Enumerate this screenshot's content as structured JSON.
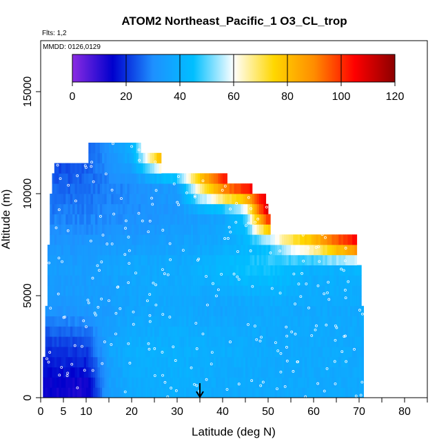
{
  "chart_data": {
    "type": "heatmap",
    "title": "ATOM2 Northeast_Pacific_1 O3_CL_trop",
    "annotations": {
      "flights": "Flts: 1,2",
      "dates": "MMDD: 0126,0129"
    },
    "xlabel": "Latitude (deg N)",
    "ylabel": "Altitude (m)",
    "xlim": [
      0,
      85
    ],
    "ylim": [
      0,
      17500
    ],
    "x_ticks": [
      0,
      5,
      10,
      20,
      30,
      40,
      50,
      60,
      70,
      80
    ],
    "y_ticks": [
      0,
      5000,
      10000,
      15000
    ],
    "colorbar": {
      "range": [
        0,
        120
      ],
      "ticks": [
        0,
        20,
        40,
        60,
        80,
        100,
        120
      ],
      "colors": [
        "#8b2be2",
        "#0000cd",
        "#1e90ff",
        "#00bfff",
        "#ffffff",
        "#ffd700",
        "#ff8c00",
        "#ff0000",
        "#8b0000"
      ]
    },
    "marker_latitude": 35,
    "altitude_bins_m": [
      500,
      1000,
      1500,
      2000,
      2500,
      3000,
      3500,
      4000,
      4500,
      5000,
      5500,
      6000,
      6500,
      7000,
      7500,
      8000,
      8500,
      9000,
      9500,
      10000,
      10500,
      11000,
      11500,
      12000,
      12500
    ],
    "lat_extent_by_altitude": [
      [
        0.5,
        71
      ],
      [
        0.5,
        71
      ],
      [
        0.5,
        71
      ],
      [
        0.5,
        71
      ],
      [
        1,
        71
      ],
      [
        1,
        71
      ],
      [
        1,
        71
      ],
      [
        1,
        71
      ],
      [
        1,
        71
      ],
      [
        1.5,
        70.5
      ],
      [
        1.5,
        70.5
      ],
      [
        1.5,
        70.5
      ],
      [
        1.5,
        70.5
      ],
      [
        1.5,
        69.5
      ],
      [
        1.5,
        69.5
      ],
      [
        2,
        69.5
      ],
      [
        2,
        50.5
      ],
      [
        2,
        50.5
      ],
      [
        2,
        50
      ],
      [
        2,
        49.5
      ],
      [
        2.5,
        46.5
      ],
      [
        2.5,
        41
      ],
      [
        3,
        26.5
      ],
      [
        10.5,
        26.5
      ],
      [
        10.5,
        22
      ]
    ],
    "o3_profile_ppbv": [
      {
        "altitude_m": 500,
        "lat": [
          0,
          10,
          15,
          20,
          30,
          40,
          50,
          60,
          70
        ],
        "o3": [
          14,
          12,
          34,
          38,
          40,
          38,
          38,
          38,
          38
        ]
      },
      {
        "altitude_m": 2500,
        "lat": [
          0,
          10,
          15,
          20,
          30,
          40,
          50,
          60,
          70
        ],
        "o3": [
          20,
          22,
          36,
          40,
          40,
          40,
          38,
          38,
          38
        ]
      },
      {
        "altitude_m": 4500,
        "lat": [
          0,
          10,
          15,
          20,
          30,
          40,
          50,
          60,
          70
        ],
        "o3": [
          32,
          34,
          34,
          36,
          38,
          36,
          38,
          38,
          38
        ]
      },
      {
        "altitude_m": 6500,
        "lat": [
          0,
          10,
          15,
          20,
          30,
          40,
          50,
          60,
          70
        ],
        "o3": [
          34,
          34,
          36,
          38,
          38,
          44,
          48,
          40,
          42
        ]
      },
      {
        "altitude_m": 7500,
        "lat": [
          0,
          10,
          20,
          30,
          40,
          50,
          55,
          60,
          65,
          70
        ],
        "o3": [
          32,
          32,
          34,
          36,
          38,
          44,
          62,
          74,
          92,
          105
        ]
      },
      {
        "altitude_m": 9000,
        "lat": [
          0,
          10,
          20,
          30,
          40,
          45,
          48,
          50
        ],
        "o3": [
          28,
          28,
          30,
          32,
          36,
          48,
          90,
          110
        ]
      },
      {
        "altitude_m": 10500,
        "lat": [
          0,
          10,
          20,
          30,
          35,
          40,
          45
        ],
        "o3": [
          24,
          26,
          30,
          34,
          72,
          100,
          112
        ]
      },
      {
        "altitude_m": 12000,
        "lat": [
          5,
          10,
          20,
          25,
          28
        ],
        "o3": [
          20,
          24,
          40,
          80,
          105
        ]
      }
    ]
  }
}
